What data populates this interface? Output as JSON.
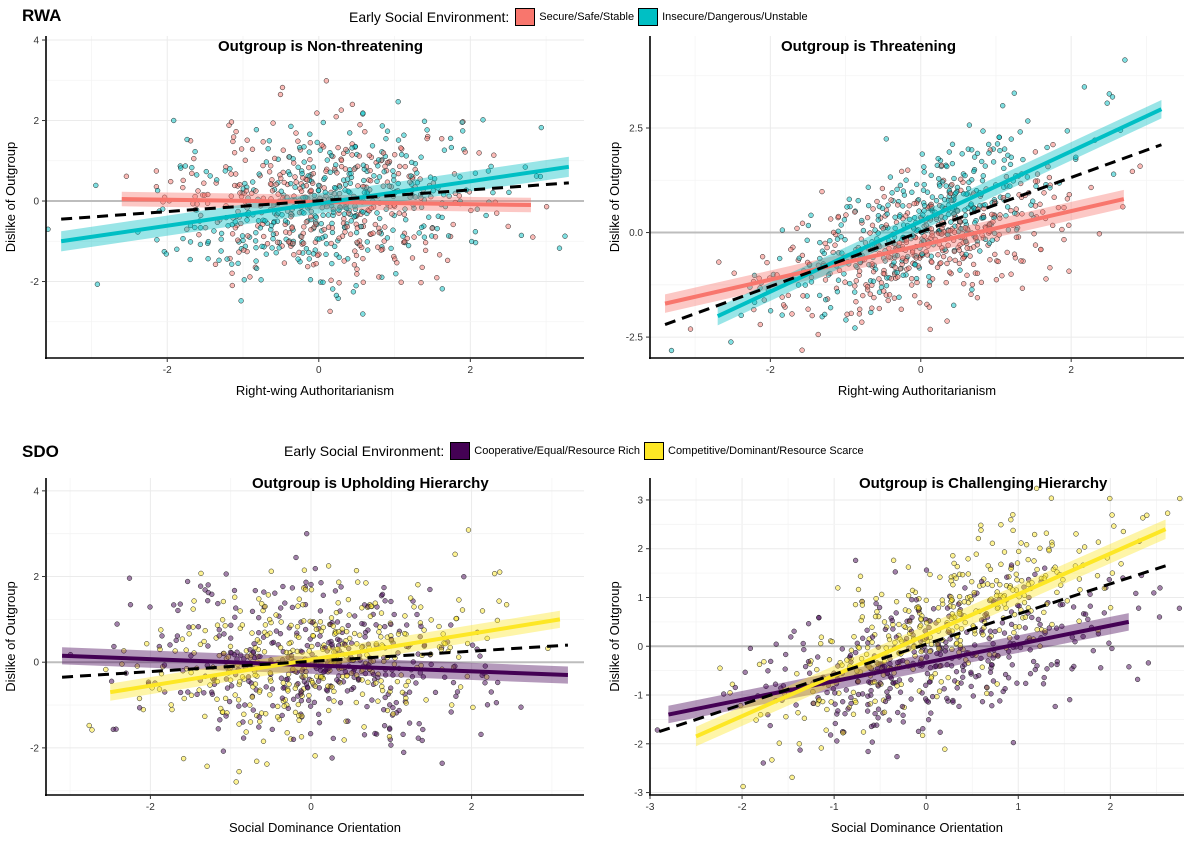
{
  "sections": {
    "rwa": {
      "label": "RWA",
      "legend_title": "Early Social Environment:",
      "legend_items": [
        {
          "label": "Secure/Safe/Stable",
          "color": "#F8766D"
        },
        {
          "label": "Insecure/Dangerous/Unstable",
          "color": "#00BFC4"
        }
      ]
    },
    "sdo": {
      "label": "SDO",
      "legend_title": "Early Social Environment:",
      "legend_items": [
        {
          "label": "Cooperative/Equal/Resource Rich",
          "color": "#440154"
        },
        {
          "label": "Competitive/Dominant/Resource Scarce",
          "color": "#FDE725"
        }
      ]
    }
  },
  "chart_data": [
    {
      "type": "scatter",
      "title": "Outgroup is Non-threatening",
      "xlabel": "Right-wing Authoritarianism",
      "ylabel": "Dislike of Outgroup",
      "xlim": [
        -3.6,
        3.5
      ],
      "ylim": [
        -3.9,
        4.1
      ],
      "xticks": [
        -2,
        0,
        2
      ],
      "xtick_labels": [
        "-2",
        "0",
        "2"
      ],
      "yticks": [
        -2,
        0,
        2,
        4
      ],
      "ytick_labels": [
        "-2",
        "0",
        "2",
        "4"
      ],
      "grid": true,
      "points_approx": 750,
      "series": [
        {
          "name": "Secure/Safe/Stable",
          "color": "#F8766D",
          "fit": {
            "x": [
              -2.6,
              2.8
            ],
            "y": [
              0.05,
              -0.1
            ]
          },
          "ci": 0.18
        },
        {
          "name": "Insecure/Dangerous/Unstable",
          "color": "#00BFC4",
          "fit": {
            "x": [
              -3.4,
              3.3
            ],
            "y": [
              -1.0,
              0.85
            ]
          },
          "ci": 0.25
        }
      ],
      "overall_fit": {
        "x": [
          -3.4,
          3.3
        ],
        "y": [
          -0.45,
          0.45
        ]
      },
      "spread": {
        "cx": 0.1,
        "sx": 1.05,
        "slope": 0.12,
        "sy": 0.95
      }
    },
    {
      "type": "scatter",
      "title": "Outgroup is Threatening",
      "xlabel": "Right-wing Authoritarianism",
      "ylabel": "Dislike of Outgroup",
      "xlim": [
        -3.6,
        3.5
      ],
      "ylim": [
        -3.0,
        4.7
      ],
      "xticks": [
        -2,
        0,
        2
      ],
      "xtick_labels": [
        "-2",
        "0",
        "2"
      ],
      "yticks": [
        -2.5,
        0,
        2.5
      ],
      "ytick_labels": [
        "-2.5",
        "0.0",
        "2.5"
      ],
      "grid": true,
      "points_approx": 750,
      "series": [
        {
          "name": "Secure/Safe/Stable",
          "color": "#F8766D",
          "fit": {
            "x": [
              -3.4,
              2.7
            ],
            "y": [
              -1.7,
              0.8
            ]
          },
          "ci": 0.22
        },
        {
          "name": "Insecure/Dangerous/Unstable",
          "color": "#00BFC4",
          "fit": {
            "x": [
              -2.7,
              3.2
            ],
            "y": [
              -2.0,
              2.95
            ]
          },
          "ci": 0.22
        }
      ],
      "overall_fit": {
        "x": [
          -3.4,
          3.2
        ],
        "y": [
          -2.2,
          2.1
        ]
      },
      "spread": {
        "cx": 0.0,
        "sx": 1.0,
        "slope": 0.68,
        "sy": 0.75
      }
    },
    {
      "type": "scatter",
      "title": "Outgroup is Upholding Hierarchy",
      "xlabel": "Social Dominance Orientation",
      "ylabel": "Dislike of Outgroup",
      "xlim": [
        -3.3,
        3.4
      ],
      "ylim": [
        -3.1,
        4.3
      ],
      "xticks": [
        -2,
        0,
        2
      ],
      "xtick_labels": [
        "-2",
        "0",
        "2"
      ],
      "yticks": [
        -2,
        0,
        2,
        4
      ],
      "ytick_labels": [
        "-2",
        "0",
        "2",
        "4"
      ],
      "grid": true,
      "points_approx": 750,
      "series": [
        {
          "name": "Cooperative/Equal/Resource Rich",
          "color": "#440154",
          "fit": {
            "x": [
              -3.1,
              3.2
            ],
            "y": [
              0.15,
              -0.3
            ]
          },
          "ci": 0.2
        },
        {
          "name": "Competitive/Dominant/Resource Scarce",
          "color": "#FDE725",
          "fit": {
            "x": [
              -2.5,
              3.1
            ],
            "y": [
              -0.7,
              1.0
            ]
          },
          "ci": 0.2
        }
      ],
      "overall_fit": {
        "x": [
          -3.1,
          3.2
        ],
        "y": [
          -0.35,
          0.4
        ]
      },
      "spread": {
        "cx": 0.0,
        "sx": 1.05,
        "slope": 0.12,
        "sy": 0.95
      }
    },
    {
      "type": "scatter",
      "title": "Outgroup is Challenging Hierarchy",
      "xlabel": "Social Dominance Orientation",
      "ylabel": "Dislike of Outgroup",
      "xlim": [
        -3.0,
        2.8
      ],
      "ylim": [
        -3.05,
        3.45
      ],
      "xticks": [
        -3,
        -2,
        -1,
        0,
        1,
        2
      ],
      "xtick_labels": [
        "-3",
        "-2",
        "-1",
        "0",
        "1",
        "2"
      ],
      "yticks": [
        -3,
        -2,
        -1,
        0,
        1,
        2,
        3
      ],
      "ytick_labels": [
        "-3",
        "-2",
        "-1",
        "0",
        "1",
        "2",
        "3"
      ],
      "grid": true,
      "points_approx": 750,
      "series": [
        {
          "name": "Cooperative/Equal/Resource Rich",
          "color": "#440154",
          "fit": {
            "x": [
              -2.8,
              2.2
            ],
            "y": [
              -1.4,
              0.5
            ]
          },
          "ci": 0.18
        },
        {
          "name": "Competitive/Dominant/Resource Scarce",
          "color": "#FDE725",
          "fit": {
            "x": [
              -2.5,
              2.6
            ],
            "y": [
              -1.85,
              2.4
            ]
          },
          "ci": 0.2
        }
      ],
      "overall_fit": {
        "x": [
          -2.9,
          2.6
        ],
        "y": [
          -1.75,
          1.65
        ]
      },
      "spread": {
        "cx": 0.1,
        "sx": 0.95,
        "slope": 0.62,
        "sy": 0.75
      }
    }
  ]
}
